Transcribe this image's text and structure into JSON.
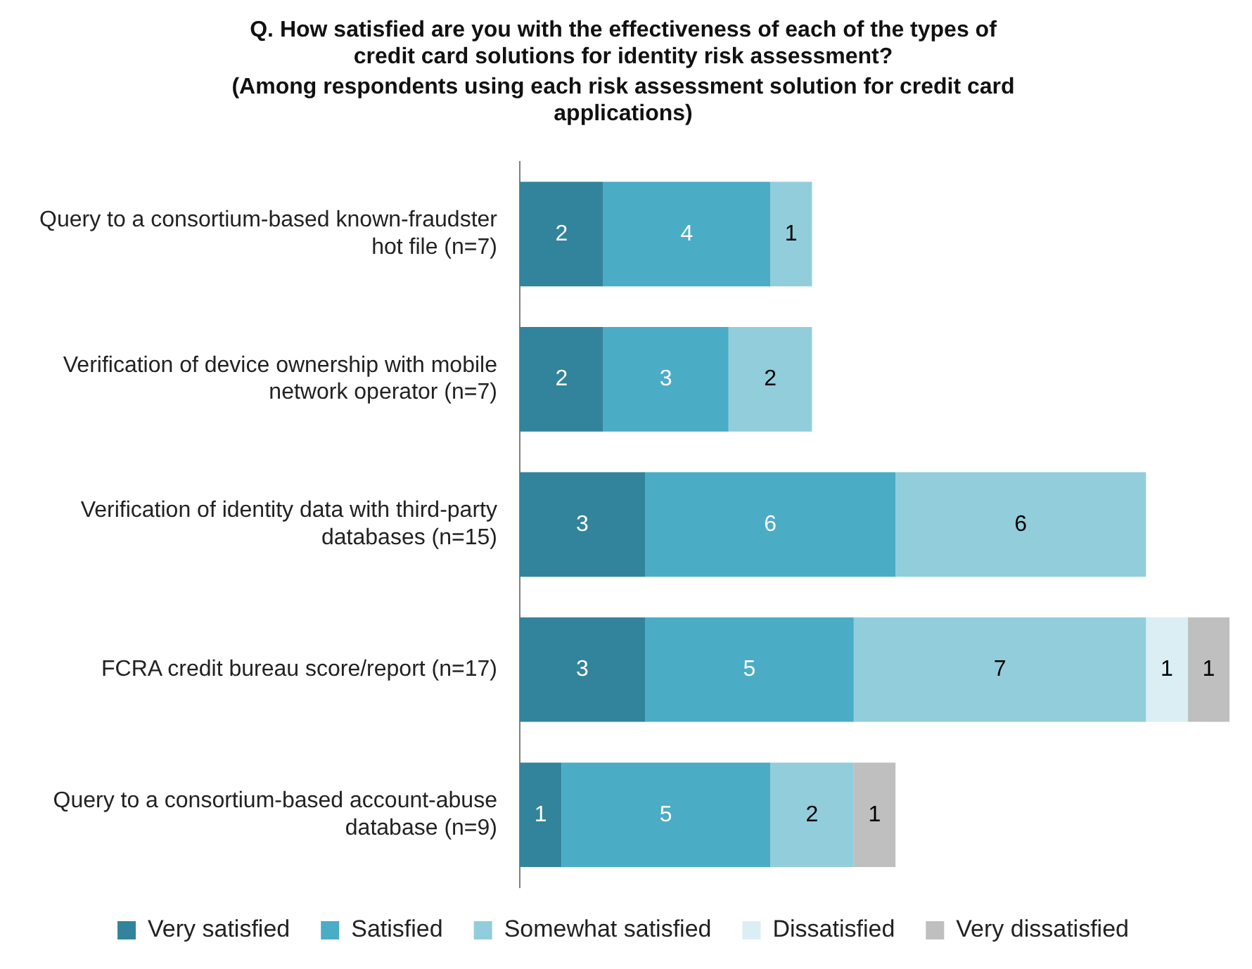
{
  "chart_data": {
    "type": "bar",
    "orientation": "horizontal",
    "stacked": true,
    "data_labels": true,
    "title": "Q. How satisfied are you with the effectiveness of each of the types of credit card solutions for identity risk assessment?",
    "subtitle": "(Among respondents using each risk assessment solution for credit card applications)",
    "categories": [
      "Query to a consortium-based known-fraudster hot file (n=7)",
      "Verification of device ownership with mobile network operator (n=7)",
      "Verification of identity data with third-party databases (n=15)",
      "FCRA credit bureau score/report (n=17)",
      "Query to a consortium-based account-abuse database (n=9)"
    ],
    "series": [
      {
        "name": "Very satisfied",
        "color": "#31849b",
        "values": [
          2,
          2,
          3,
          3,
          1
        ]
      },
      {
        "name": "Satisfied",
        "color": "#4bacc6",
        "values": [
          4,
          3,
          6,
          5,
          5
        ]
      },
      {
        "name": "Somewhat satisfied",
        "color": "#92cddc",
        "values": [
          1,
          2,
          6,
          7,
          2
        ]
      },
      {
        "name": "Dissatisfied",
        "color": "#daeef3",
        "values": [
          null,
          null,
          null,
          1,
          null
        ]
      },
      {
        "name": "Very dissatisfied",
        "color": "#bfbfbf",
        "values": [
          null,
          null,
          null,
          1,
          1
        ]
      }
    ],
    "legend": "bottom",
    "grid": false
  }
}
